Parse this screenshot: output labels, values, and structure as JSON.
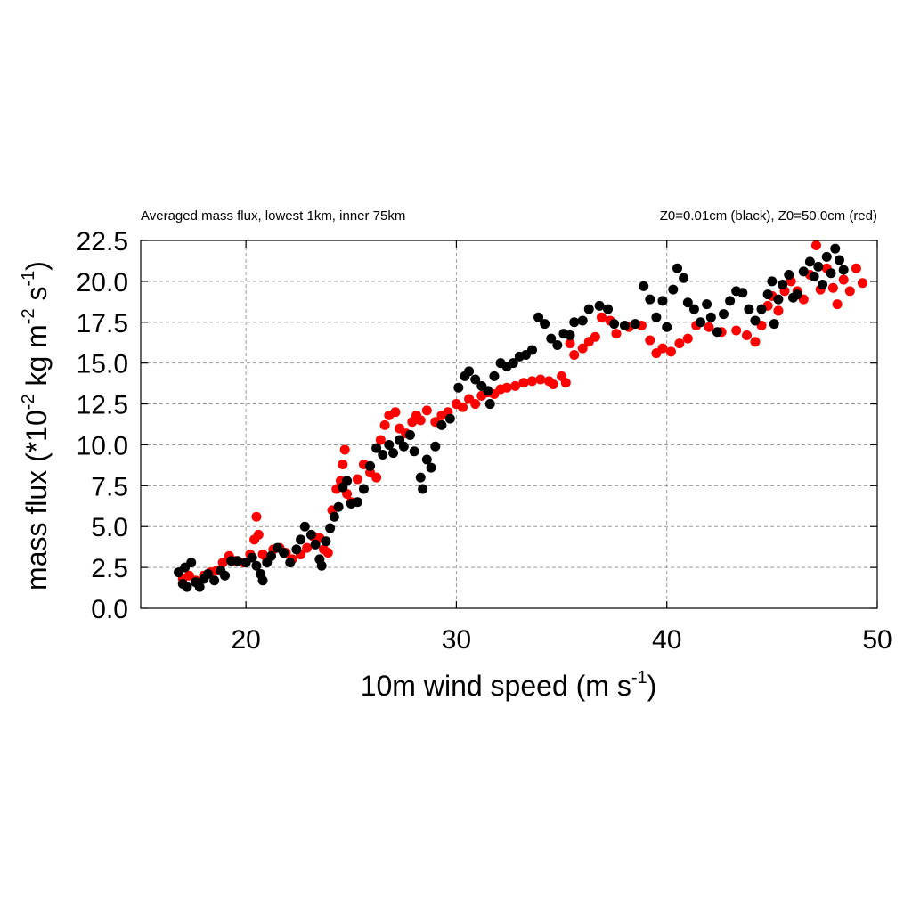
{
  "chart_data": {
    "type": "scatter",
    "title": "Averaged mass flux, lowest 1km, inner 75km",
    "subtitle": "Z0=0.01cm (black), Z0=50.0cm (red)",
    "xlabel": "10m wind speed (m s",
    "xlabel_sup": "-1",
    "xlabel_end": ")",
    "ylabel": "mass flux (*10",
    "ylabel_sup1": "-2",
    "ylabel_mid": " kg m",
    "ylabel_sup2": "-2",
    "ylabel_mid2": " s",
    "ylabel_sup3": "-1",
    "ylabel_end": ")",
    "xlim": [
      15,
      50
    ],
    "ylim": [
      0,
      22.5
    ],
    "xticks": [
      20,
      30,
      40,
      50
    ],
    "xtick_labels": [
      "20",
      "30",
      "40",
      "50"
    ],
    "yticks": [
      0,
      2.5,
      5,
      7.5,
      10,
      12.5,
      15,
      17.5,
      20,
      22.5
    ],
    "ytick_labels": [
      "0.0",
      "2.5",
      "5.0",
      "7.5",
      "10.0",
      "12.5",
      "15.0",
      "17.5",
      "20.0",
      "22.5"
    ],
    "grid": true,
    "series": [
      {
        "name": "Z0=50.0cm (red)",
        "color": "#ff0000",
        "points": [
          [
            17.0,
            1.8
          ],
          [
            17.3,
            2.0
          ],
          [
            17.6,
            1.7
          ],
          [
            18.0,
            2.0
          ],
          [
            18.3,
            2.2
          ],
          [
            18.6,
            2.3
          ],
          [
            18.9,
            2.8
          ],
          [
            19.2,
            3.2
          ],
          [
            19.5,
            2.9
          ],
          [
            19.9,
            2.8
          ],
          [
            20.2,
            3.3
          ],
          [
            20.4,
            4.2
          ],
          [
            20.5,
            5.6
          ],
          [
            20.6,
            4.5
          ],
          [
            20.8,
            3.3
          ],
          [
            21.0,
            3.0
          ],
          [
            21.3,
            3.6
          ],
          [
            21.6,
            3.7
          ],
          [
            21.9,
            3.4
          ],
          [
            22.2,
            3.0
          ],
          [
            22.6,
            3.3
          ],
          [
            22.9,
            3.7
          ],
          [
            23.2,
            4.4
          ],
          [
            23.5,
            4.3
          ],
          [
            23.7,
            3.6
          ],
          [
            23.9,
            3.4
          ],
          [
            24.1,
            6.0
          ],
          [
            24.3,
            7.3
          ],
          [
            24.5,
            7.8
          ],
          [
            24.6,
            8.8
          ],
          [
            24.7,
            9.7
          ],
          [
            24.8,
            7.0
          ],
          [
            25.0,
            6.5
          ],
          [
            25.3,
            7.9
          ],
          [
            25.6,
            8.8
          ],
          [
            25.9,
            8.3
          ],
          [
            26.2,
            8.0
          ],
          [
            26.4,
            10.3
          ],
          [
            26.6,
            11.2
          ],
          [
            26.8,
            11.8
          ],
          [
            27.1,
            12.0
          ],
          [
            27.3,
            11.0
          ],
          [
            27.6,
            10.7
          ],
          [
            27.9,
            11.4
          ],
          [
            28.1,
            11.8
          ],
          [
            28.3,
            11.5
          ],
          [
            28.6,
            12.1
          ],
          [
            29.0,
            11.4
          ],
          [
            29.3,
            11.8
          ],
          [
            29.6,
            12.0
          ],
          [
            30.0,
            12.5
          ],
          [
            30.3,
            12.3
          ],
          [
            30.6,
            12.8
          ],
          [
            30.9,
            12.5
          ],
          [
            31.2,
            13.0
          ],
          [
            31.5,
            13.2
          ],
          [
            31.8,
            13.1
          ],
          [
            32.1,
            13.4
          ],
          [
            32.4,
            13.5
          ],
          [
            32.8,
            13.6
          ],
          [
            33.2,
            13.8
          ],
          [
            33.6,
            13.9
          ],
          [
            34.0,
            14.0
          ],
          [
            34.4,
            13.9
          ],
          [
            34.6,
            13.7
          ],
          [
            35.0,
            14.2
          ],
          [
            35.2,
            13.8
          ],
          [
            35.4,
            16.2
          ],
          [
            35.6,
            15.5
          ],
          [
            36.0,
            15.9
          ],
          [
            36.3,
            16.3
          ],
          [
            36.6,
            16.6
          ],
          [
            36.9,
            17.8
          ],
          [
            37.3,
            17.6
          ],
          [
            37.6,
            16.8
          ],
          [
            38.2,
            17.2
          ],
          [
            38.8,
            17.3
          ],
          [
            39.2,
            16.4
          ],
          [
            39.5,
            15.6
          ],
          [
            39.8,
            15.9
          ],
          [
            40.2,
            15.7
          ],
          [
            40.6,
            16.2
          ],
          [
            41.0,
            16.5
          ],
          [
            41.4,
            17.3
          ],
          [
            42.0,
            17.2
          ],
          [
            42.6,
            16.9
          ],
          [
            43.3,
            17.0
          ],
          [
            43.8,
            16.7
          ],
          [
            44.2,
            16.3
          ],
          [
            44.5,
            17.3
          ],
          [
            44.8,
            18.5
          ],
          [
            45.0,
            19.1
          ],
          [
            45.3,
            18.2
          ],
          [
            45.6,
            19.4
          ],
          [
            45.9,
            20.0
          ],
          [
            46.2,
            19.4
          ],
          [
            46.5,
            18.9
          ],
          [
            46.8,
            20.4
          ],
          [
            47.1,
            22.2
          ],
          [
            47.3,
            19.5
          ],
          [
            47.6,
            20.8
          ],
          [
            47.9,
            19.6
          ],
          [
            48.1,
            18.6
          ],
          [
            48.4,
            20.1
          ],
          [
            48.7,
            19.4
          ],
          [
            49.0,
            20.8
          ],
          [
            49.3,
            19.9
          ]
        ]
      },
      {
        "name": "Z0=0.01cm (black)",
        "color": "#000000",
        "points": [
          [
            16.8,
            2.2
          ],
          [
            17.0,
            1.5
          ],
          [
            17.1,
            2.5
          ],
          [
            17.2,
            1.3
          ],
          [
            17.4,
            2.8
          ],
          [
            17.6,
            1.6
          ],
          [
            17.8,
            1.3
          ],
          [
            18.0,
            1.8
          ],
          [
            18.2,
            2.1
          ],
          [
            18.5,
            1.7
          ],
          [
            18.8,
            2.3
          ],
          [
            19.0,
            2.0
          ],
          [
            19.3,
            2.9
          ],
          [
            19.6,
            2.9
          ],
          [
            20.0,
            2.8
          ],
          [
            20.3,
            3.1
          ],
          [
            20.5,
            2.6
          ],
          [
            20.7,
            2.1
          ],
          [
            20.8,
            1.7
          ],
          [
            21.0,
            2.8
          ],
          [
            21.2,
            3.2
          ],
          [
            21.5,
            3.7
          ],
          [
            21.8,
            3.4
          ],
          [
            22.1,
            2.8
          ],
          [
            22.4,
            3.6
          ],
          [
            22.6,
            4.2
          ],
          [
            22.8,
            5.0
          ],
          [
            23.1,
            4.5
          ],
          [
            23.3,
            3.9
          ],
          [
            23.5,
            3.0
          ],
          [
            23.6,
            2.6
          ],
          [
            23.8,
            4.1
          ],
          [
            24.0,
            4.9
          ],
          [
            24.2,
            5.6
          ],
          [
            24.4,
            6.2
          ],
          [
            24.6,
            7.4
          ],
          [
            24.8,
            7.8
          ],
          [
            25.0,
            6.4
          ],
          [
            25.3,
            6.5
          ],
          [
            25.6,
            7.3
          ],
          [
            25.9,
            8.7
          ],
          [
            26.2,
            9.8
          ],
          [
            26.5,
            9.4
          ],
          [
            26.8,
            10.0
          ],
          [
            27.0,
            9.5
          ],
          [
            27.3,
            10.3
          ],
          [
            27.5,
            9.9
          ],
          [
            27.8,
            10.6
          ],
          [
            28.0,
            9.6
          ],
          [
            28.3,
            8.0
          ],
          [
            28.4,
            7.3
          ],
          [
            28.6,
            9.1
          ],
          [
            28.8,
            8.6
          ],
          [
            29.0,
            9.9
          ],
          [
            29.3,
            11.2
          ],
          [
            29.7,
            11.6
          ],
          [
            30.1,
            13.5
          ],
          [
            30.4,
            14.2
          ],
          [
            30.6,
            14.5
          ],
          [
            30.9,
            14.0
          ],
          [
            31.2,
            13.6
          ],
          [
            31.5,
            13.3
          ],
          [
            31.6,
            12.5
          ],
          [
            31.8,
            14.2
          ],
          [
            32.1,
            15.0
          ],
          [
            32.4,
            14.8
          ],
          [
            32.7,
            15.0
          ],
          [
            33.0,
            15.4
          ],
          [
            33.3,
            15.5
          ],
          [
            33.6,
            15.8
          ],
          [
            33.9,
            17.8
          ],
          [
            34.2,
            17.4
          ],
          [
            34.5,
            16.5
          ],
          [
            34.8,
            16.1
          ],
          [
            35.1,
            16.8
          ],
          [
            35.4,
            16.7
          ],
          [
            35.6,
            17.5
          ],
          [
            36.0,
            17.6
          ],
          [
            36.3,
            18.3
          ],
          [
            36.8,
            18.5
          ],
          [
            37.2,
            18.3
          ],
          [
            37.5,
            17.4
          ],
          [
            38.0,
            17.3
          ],
          [
            38.5,
            17.4
          ],
          [
            38.9,
            19.7
          ],
          [
            39.2,
            18.9
          ],
          [
            39.5,
            17.8
          ],
          [
            39.8,
            18.8
          ],
          [
            40.0,
            17.2
          ],
          [
            40.3,
            19.5
          ],
          [
            40.5,
            20.8
          ],
          [
            40.8,
            20.2
          ],
          [
            41.0,
            18.7
          ],
          [
            41.3,
            18.3
          ],
          [
            41.6,
            17.5
          ],
          [
            41.9,
            18.6
          ],
          [
            42.1,
            17.8
          ],
          [
            42.4,
            16.9
          ],
          [
            42.7,
            18.0
          ],
          [
            43.0,
            18.8
          ],
          [
            43.3,
            19.4
          ],
          [
            43.6,
            19.3
          ],
          [
            43.9,
            18.3
          ],
          [
            44.2,
            17.6
          ],
          [
            44.5,
            18.3
          ],
          [
            44.8,
            19.2
          ],
          [
            45.0,
            20.0
          ],
          [
            45.1,
            17.4
          ],
          [
            45.3,
            18.9
          ],
          [
            45.5,
            19.8
          ],
          [
            45.8,
            20.4
          ],
          [
            46.0,
            19.0
          ],
          [
            46.2,
            19.2
          ],
          [
            46.5,
            20.6
          ],
          [
            46.8,
            21.2
          ],
          [
            47.0,
            20.3
          ],
          [
            47.2,
            20.9
          ],
          [
            47.4,
            19.8
          ],
          [
            47.6,
            21.5
          ],
          [
            47.8,
            20.5
          ],
          [
            48.0,
            22.0
          ],
          [
            48.2,
            21.3
          ],
          [
            48.4,
            20.7
          ]
        ]
      }
    ]
  }
}
